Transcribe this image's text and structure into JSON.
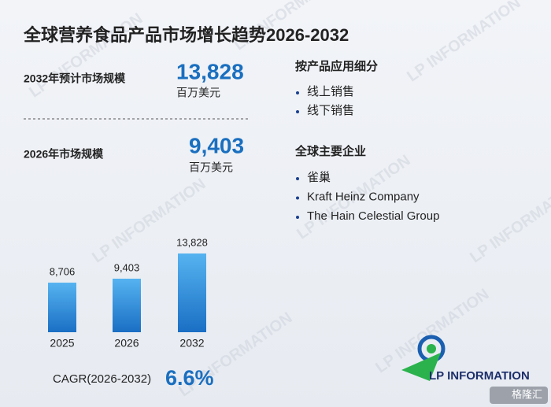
{
  "title": "全球营养食品产品市场增长趋势2026-2032",
  "stats": [
    {
      "label": "2032年预计市场规模",
      "value": "13,828",
      "unit": "百万美元"
    },
    {
      "label": "2026年市场规模",
      "value": "9,403",
      "unit": "百万美元"
    }
  ],
  "segments": {
    "title": "按产品应用细分",
    "items": [
      "线上销售",
      "线下销售"
    ]
  },
  "companies": {
    "title": "全球主要企业",
    "items": [
      "雀巢",
      "Kraft Heinz Company",
      "The Hain Celestial Group"
    ]
  },
  "chart_data": {
    "type": "bar",
    "categories": [
      "2025",
      "2026",
      "2032"
    ],
    "values": [
      8706,
      9403,
      13828
    ],
    "value_labels": [
      "8,706",
      "9,403",
      "13,828"
    ],
    "color": "#2e8fdc"
  },
  "cagr": {
    "label": "CAGR(2026-2032)",
    "value": "6.6%"
  },
  "logo": "LP INFORMATION",
  "watermark": "LP INFORMATION",
  "badge": "格隆汇"
}
